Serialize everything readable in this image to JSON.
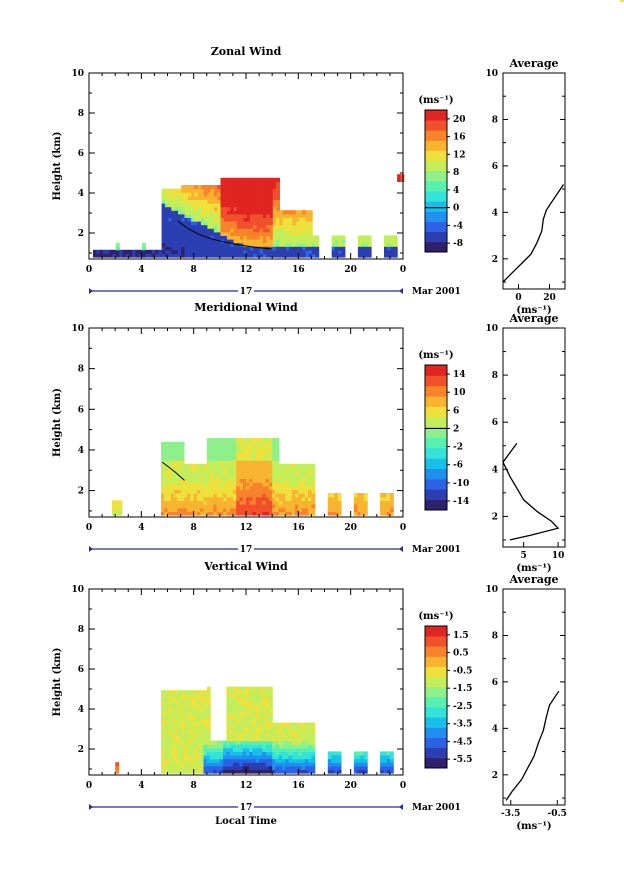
{
  "chart_data": [
    {
      "type": "heatmap",
      "title": "Zonal Wind",
      "ylabel": "Height (km)",
      "xticks": [
        "0",
        "4",
        "8",
        "12",
        "16",
        "20",
        "0"
      ],
      "yticks": [
        "2",
        "4",
        "6",
        "8",
        "10"
      ],
      "xlim": [
        0,
        24
      ],
      "ylim": [
        0.7,
        10
      ],
      "date_label": "17",
      "month_label": "Mar 2001",
      "colorbar": {
        "unit": "(ms⁻¹)",
        "ticks": [
          "20",
          "16",
          "12",
          "8",
          "4",
          "0",
          "-4",
          "-8"
        ],
        "vmin": -10,
        "vmax": 22,
        "contour": 0
      },
      "data_extent": {
        "x": [
          0.3,
          23.9
        ],
        "y": [
          0.8,
          4.8
        ]
      },
      "profile": {
        "title": "Average",
        "xticks": [
          "0",
          "20"
        ],
        "xlim": [
          -10,
          30
        ],
        "yticks": [
          "2",
          "4",
          "6",
          "8",
          "10"
        ],
        "ylim": [
          0.7,
          10
        ],
        "xlabel": "(ms⁻¹)",
        "points": [
          [
            -10,
            1.0
          ],
          [
            -4,
            1.4
          ],
          [
            2,
            1.8
          ],
          [
            8,
            2.2
          ],
          [
            12,
            2.7
          ],
          [
            15,
            3.2
          ],
          [
            16,
            3.7
          ],
          [
            18,
            4.1
          ],
          [
            22,
            4.5
          ],
          [
            26,
            4.9
          ],
          [
            29,
            5.2
          ]
        ]
      }
    },
    {
      "type": "heatmap",
      "title": "Meridional Wind",
      "ylabel": "Height (km)",
      "xticks": [
        "0",
        "4",
        "8",
        "12",
        "16",
        "20",
        "0"
      ],
      "yticks": [
        "2",
        "4",
        "6",
        "8",
        "10"
      ],
      "xlim": [
        0,
        24
      ],
      "ylim": [
        0.7,
        10
      ],
      "date_label": "17",
      "month_label": "Mar 2001",
      "colorbar": {
        "unit": "(ms⁻¹)",
        "ticks": [
          "14",
          "10",
          "6",
          "2",
          "-2",
          "-6",
          "-10",
          "-14"
        ],
        "vmin": -16,
        "vmax": 16,
        "contour": 2
      },
      "data_extent": {
        "x": [
          1.5,
          23.9
        ],
        "y": [
          0.8,
          4.6
        ]
      },
      "profile": {
        "title": "Average",
        "xticks": [
          "5",
          "10"
        ],
        "xlim": [
          2,
          11
        ],
        "yticks": [
          "2",
          "4",
          "6",
          "8",
          "10"
        ],
        "ylim": [
          0.7,
          10
        ],
        "xlabel": "(ms⁻¹)",
        "points": [
          [
            3,
            1.0
          ],
          [
            6,
            1.2
          ],
          [
            10,
            1.5
          ],
          [
            9,
            1.8
          ],
          [
            7,
            2.2
          ],
          [
            5,
            2.7
          ],
          [
            4,
            3.2
          ],
          [
            3,
            3.7
          ],
          [
            2,
            4.3
          ],
          [
            3,
            4.7
          ],
          [
            4,
            5.1
          ]
        ]
      }
    },
    {
      "type": "heatmap",
      "title": "Vertical Wind",
      "xlabel": "Local Time",
      "ylabel": "Height (km)",
      "xticks": [
        "0",
        "4",
        "8",
        "12",
        "16",
        "20",
        "0"
      ],
      "yticks": [
        "2",
        "4",
        "6",
        "8",
        "10"
      ],
      "xlim": [
        0,
        24
      ],
      "ylim": [
        0.7,
        10
      ],
      "date_label": "17",
      "month_label": "Mar 2001",
      "colorbar": {
        "unit": "(ms⁻¹)",
        "ticks": [
          "1.5",
          "0.5",
          "-0.5",
          "-1.5",
          "-2.5",
          "-3.5",
          "-4.5",
          "-5.5"
        ],
        "vmin": -6.5,
        "vmax": 2.5
      },
      "data_extent": {
        "x": [
          1.5,
          23.9
        ],
        "y": [
          0.8,
          5.0
        ]
      },
      "profile": {
        "title": "Average",
        "xticks": [
          "-3.5",
          "-0.5"
        ],
        "xlim": [
          -4,
          0
        ],
        "yticks": [
          "2",
          "4",
          "6",
          "8",
          "10"
        ],
        "ylim": [
          0.7,
          10
        ],
        "xlabel": "(ms⁻¹)",
        "points": [
          [
            -3.8,
            0.9
          ],
          [
            -3.4,
            1.3
          ],
          [
            -2.8,
            1.8
          ],
          [
            -2.4,
            2.3
          ],
          [
            -2.0,
            2.8
          ],
          [
            -1.7,
            3.4
          ],
          [
            -1.4,
            3.9
          ],
          [
            -1.2,
            4.5
          ],
          [
            -1.0,
            5.0
          ],
          [
            -0.4,
            5.6
          ]
        ]
      }
    }
  ]
}
